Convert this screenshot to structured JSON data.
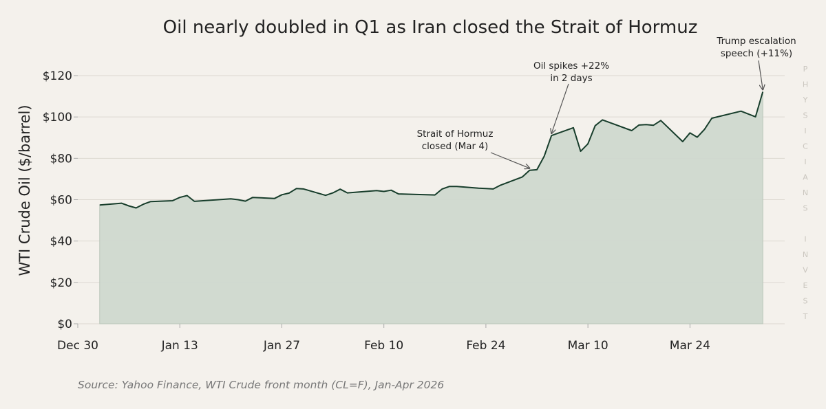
{
  "chart_data": {
    "type": "area",
    "title": "Oil nearly doubled in Q1 as Iran closed the Strait of Hormuz",
    "ylabel": "WTI Crude Oil ($/barrel)",
    "xlabel": "",
    "source": "Source: Yahoo Finance, WTI Crude front month (CL=F), Jan-Apr 2026",
    "watermark": "PHYSICIANS INVEST",
    "ylim": [
      0,
      125
    ],
    "yticks": [
      0,
      20,
      40,
      60,
      80,
      100,
      120
    ],
    "ytick_labels": [
      "$0",
      "$20",
      "$40",
      "$60",
      "$80",
      "$100",
      "$120"
    ],
    "xlim": [
      "2025-12-30",
      "2026-04-06"
    ],
    "xticks": [
      "2025-12-30",
      "2026-01-13",
      "2026-01-27",
      "2026-02-10",
      "2026-02-24",
      "2026-03-10",
      "2026-03-24"
    ],
    "xtick_labels": [
      "Dec 30",
      "Jan 13",
      "Jan 27",
      "Feb 10",
      "Feb 24",
      "Mar 10",
      "Mar 24"
    ],
    "grid": "horizontal",
    "colors": {
      "line": "#173d2b",
      "fill": "#cfd8cf",
      "background": "#f4f1ec"
    },
    "series": [
      {
        "points": [
          [
            "2026-01-02",
            57.4
          ],
          [
            "2026-01-05",
            58.3
          ],
          [
            "2026-01-06",
            57.0
          ],
          [
            "2026-01-07",
            56.0
          ],
          [
            "2026-01-08",
            57.8
          ],
          [
            "2026-01-09",
            59.1
          ],
          [
            "2026-01-12",
            59.5
          ],
          [
            "2026-01-13",
            61.1
          ],
          [
            "2026-01-14",
            62.0
          ],
          [
            "2026-01-15",
            59.2
          ],
          [
            "2026-01-20",
            60.4
          ],
          [
            "2026-01-21",
            60.0
          ],
          [
            "2026-01-22",
            59.3
          ],
          [
            "2026-01-23",
            61.1
          ],
          [
            "2026-01-26",
            60.6
          ],
          [
            "2026-01-27",
            62.4
          ],
          [
            "2026-01-28",
            63.2
          ],
          [
            "2026-01-29",
            65.4
          ],
          [
            "2026-01-30",
            65.2
          ],
          [
            "2026-02-02",
            62.1
          ],
          [
            "2026-02-03",
            63.3
          ],
          [
            "2026-02-04",
            65.1
          ],
          [
            "2026-02-05",
            63.3
          ],
          [
            "2026-02-09",
            64.4
          ],
          [
            "2026-02-10",
            64.0
          ],
          [
            "2026-02-11",
            64.6
          ],
          [
            "2026-02-12",
            62.8
          ],
          [
            "2026-02-17",
            62.3
          ],
          [
            "2026-02-18",
            65.2
          ],
          [
            "2026-02-19",
            66.4
          ],
          [
            "2026-02-20",
            66.4
          ],
          [
            "2026-02-23",
            65.6
          ],
          [
            "2026-02-24",
            65.4
          ],
          [
            "2026-02-25",
            65.2
          ],
          [
            "2026-02-26",
            67.0
          ],
          [
            "2026-03-01",
            71.0
          ],
          [
            "2026-03-02",
            74.2
          ],
          [
            "2026-03-03",
            74.5
          ],
          [
            "2026-03-04",
            81.0
          ],
          [
            "2026-03-05",
            91.0
          ],
          [
            "2026-03-08",
            94.8
          ],
          [
            "2026-03-09",
            83.4
          ],
          [
            "2026-03-10",
            87.0
          ],
          [
            "2026-03-11",
            95.8
          ],
          [
            "2026-03-12",
            98.6
          ],
          [
            "2026-03-16",
            93.4
          ],
          [
            "2026-03-17",
            96.1
          ],
          [
            "2026-03-18",
            96.3
          ],
          [
            "2026-03-19",
            96.0
          ],
          [
            "2026-03-20",
            98.3
          ],
          [
            "2026-03-23",
            88.1
          ],
          [
            "2026-03-24",
            92.3
          ],
          [
            "2026-03-25",
            90.2
          ],
          [
            "2026-03-26",
            94.0
          ],
          [
            "2026-03-27",
            99.4
          ],
          [
            "2026-03-31",
            102.8
          ],
          [
            "2026-04-02",
            100.1
          ],
          [
            "2026-04-03",
            112.2
          ]
        ]
      }
    ],
    "annotations": [
      {
        "lines": [
          "Strait of Hormuz",
          "closed (Mar 4)"
        ],
        "target": [
          "2026-03-02",
          74.2
        ]
      },
      {
        "lines": [
          "Oil spikes +22%",
          "in 2 days"
        ],
        "target": [
          "2026-03-05",
          91.0
        ]
      },
      {
        "lines": [
          "Trump escalation",
          "speech (+11%)"
        ],
        "target": [
          "2026-04-03",
          112.2
        ]
      }
    ]
  }
}
